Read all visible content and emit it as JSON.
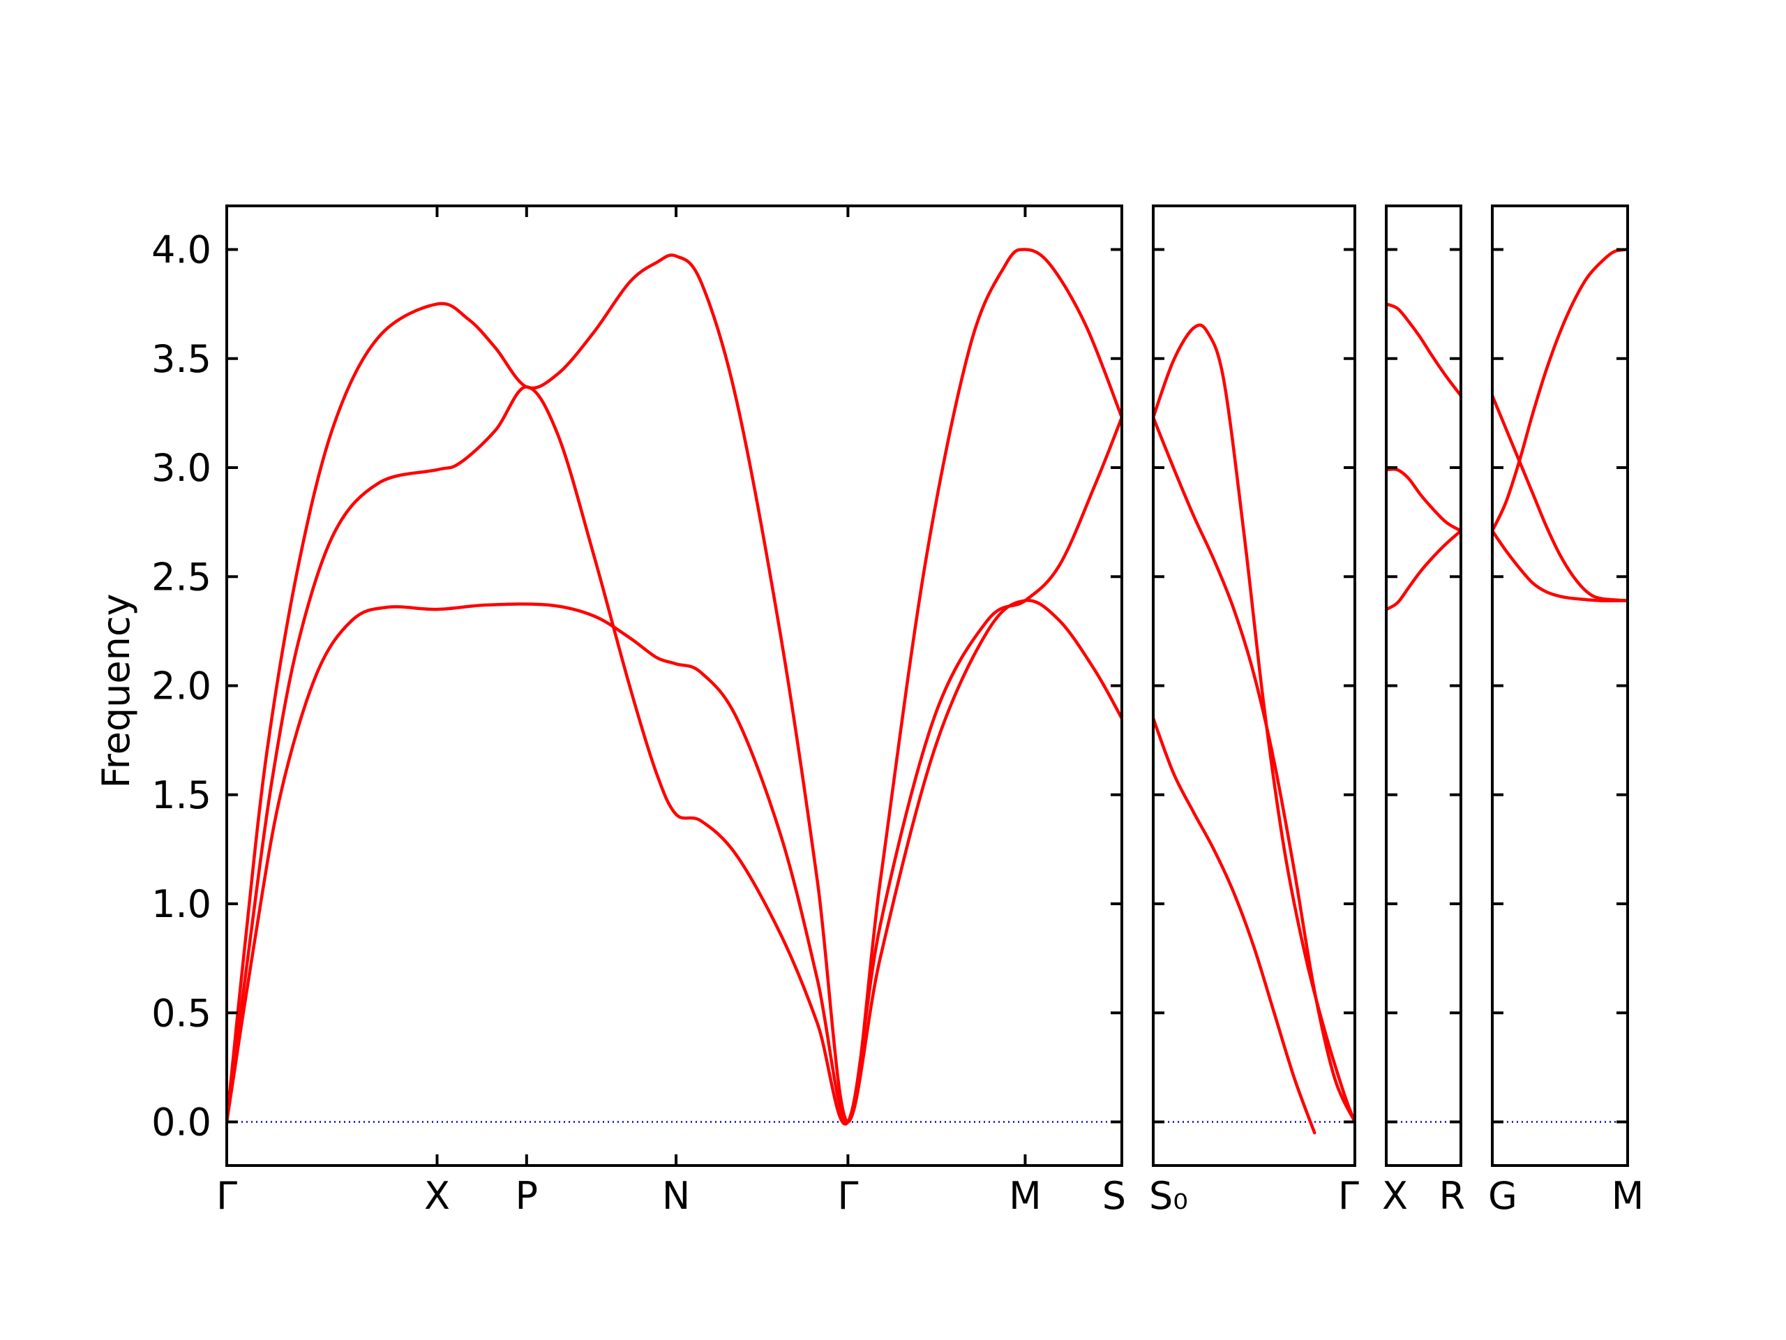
{
  "chart_data": {
    "type": "line",
    "ylabel": "Frequency",
    "ylim": [
      -0.2,
      4.2
    ],
    "yticks": [
      0.0,
      0.5,
      1.0,
      1.5,
      2.0,
      2.5,
      3.0,
      3.5,
      4.0
    ],
    "ytick_labels": [
      "0.0",
      "0.5",
      "1.0",
      "1.5",
      "2.0",
      "2.5",
      "3.0",
      "3.5",
      "4.0"
    ],
    "colors": {
      "bands": "#ff0000",
      "zero_line": "#0000cc",
      "frame": "#000000"
    },
    "grid": false,
    "panels": [
      {
        "id": "panel-1",
        "xlim": [
          0,
          1
        ],
        "kpoints": [
          {
            "x": 0.0,
            "label": "Γ"
          },
          {
            "x": 0.235,
            "label": "X"
          },
          {
            "x": 0.335,
            "label": "P"
          },
          {
            "x": 0.502,
            "label": "N"
          },
          {
            "x": 0.694,
            "label": "Γ"
          },
          {
            "x": 0.892,
            "label": "M"
          },
          {
            "x": 1.0,
            "label": "S"
          }
        ],
        "bands": [
          {
            "name": "",
            "points": [
              [
                0.0,
                0.0
              ],
              [
                0.03,
                0.8
              ],
              [
                0.06,
                1.5
              ],
              [
                0.1,
                2.05
              ],
              [
                0.14,
                2.3
              ],
              [
                0.18,
                2.36
              ],
              [
                0.235,
                2.35
              ],
              [
                0.29,
                2.37
              ],
              [
                0.36,
                2.37
              ],
              [
                0.41,
                2.32
              ],
              [
                0.45,
                2.22
              ],
              [
                0.48,
                2.13
              ],
              [
                0.502,
                2.1
              ],
              [
                0.53,
                2.06
              ],
              [
                0.57,
                1.85
              ],
              [
                0.62,
                1.3
              ],
              [
                0.66,
                0.65
              ],
              [
                0.694,
                0.0
              ],
              [
                0.73,
                0.75
              ],
              [
                0.79,
                1.7
              ],
              [
                0.85,
                2.25
              ],
              [
                0.892,
                2.39
              ],
              [
                0.93,
                2.3
              ],
              [
                0.97,
                2.07
              ],
              [
                1.0,
                1.85
              ]
            ]
          },
          {
            "name": "",
            "points": [
              [
                0.0,
                0.0
              ],
              [
                0.025,
                0.8
              ],
              [
                0.05,
                1.55
              ],
              [
                0.08,
                2.2
              ],
              [
                0.12,
                2.7
              ],
              [
                0.17,
                2.93
              ],
              [
                0.235,
                2.99
              ],
              [
                0.26,
                3.02
              ],
              [
                0.3,
                3.17
              ],
              [
                0.335,
                3.37
              ],
              [
                0.37,
                3.15
              ],
              [
                0.41,
                2.6
              ],
              [
                0.45,
                2.0
              ],
              [
                0.48,
                1.6
              ],
              [
                0.502,
                1.41
              ],
              [
                0.53,
                1.38
              ],
              [
                0.57,
                1.22
              ],
              [
                0.62,
                0.85
              ],
              [
                0.66,
                0.45
              ],
              [
                0.694,
                0.0
              ],
              [
                0.73,
                0.9
              ],
              [
                0.79,
                1.85
              ],
              [
                0.85,
                2.3
              ],
              [
                0.892,
                2.39
              ],
              [
                0.93,
                2.55
              ],
              [
                0.97,
                2.92
              ],
              [
                1.0,
                3.23
              ]
            ]
          },
          {
            "name": "",
            "points": [
              [
                0.0,
                0.0
              ],
              [
                0.02,
                0.8
              ],
              [
                0.045,
                1.7
              ],
              [
                0.08,
                2.55
              ],
              [
                0.12,
                3.2
              ],
              [
                0.17,
                3.6
              ],
              [
                0.235,
                3.75
              ],
              [
                0.27,
                3.68
              ],
              [
                0.3,
                3.55
              ],
              [
                0.335,
                3.37
              ],
              [
                0.37,
                3.43
              ],
              [
                0.41,
                3.62
              ],
              [
                0.45,
                3.85
              ],
              [
                0.48,
                3.94
              ],
              [
                0.502,
                3.97
              ],
              [
                0.53,
                3.85
              ],
              [
                0.57,
                3.3
              ],
              [
                0.62,
                2.2
              ],
              [
                0.66,
                1.1
              ],
              [
                0.694,
                0.0
              ],
              [
                0.73,
                1.1
              ],
              [
                0.78,
                2.55
              ],
              [
                0.83,
                3.55
              ],
              [
                0.87,
                3.93
              ],
              [
                0.892,
                4.0
              ],
              [
                0.92,
                3.93
              ],
              [
                0.96,
                3.65
              ],
              [
                1.0,
                3.23
              ]
            ]
          }
        ]
      },
      {
        "id": "panel-2",
        "xlim": [
          0,
          1
        ],
        "kpoints": [
          {
            "x": 0.0,
            "label": "S₀"
          },
          {
            "x": 1.0,
            "label": "Γ"
          }
        ],
        "bands": [
          {
            "name": "",
            "points": [
              [
                0.0,
                1.85
              ],
              [
                0.1,
                1.6
              ],
              [
                0.2,
                1.42
              ],
              [
                0.3,
                1.25
              ],
              [
                0.4,
                1.05
              ],
              [
                0.5,
                0.8
              ],
              [
                0.6,
                0.5
              ],
              [
                0.7,
                0.2
              ],
              [
                0.8,
                -0.05
              ]
            ]
          },
          {
            "name": "",
            "points": [
              [
                0.0,
                3.23
              ],
              [
                0.1,
                3.0
              ],
              [
                0.2,
                2.78
              ],
              [
                0.3,
                2.58
              ],
              [
                0.4,
                2.35
              ],
              [
                0.5,
                2.05
              ],
              [
                0.6,
                1.65
              ],
              [
                0.7,
                1.15
              ],
              [
                0.8,
                0.6
              ],
              [
                0.9,
                0.2
              ],
              [
                1.0,
                0.0
              ]
            ]
          },
          {
            "name": "",
            "points": [
              [
                0.0,
                3.23
              ],
              [
                0.1,
                3.49
              ],
              [
                0.2,
                3.64
              ],
              [
                0.27,
                3.62
              ],
              [
                0.35,
                3.4
              ],
              [
                0.45,
                2.7
              ],
              [
                0.55,
                1.9
              ],
              [
                0.65,
                1.25
              ],
              [
                0.75,
                0.78
              ],
              [
                0.85,
                0.42
              ],
              [
                0.95,
                0.12
              ],
              [
                1.0,
                0.0
              ]
            ]
          }
        ]
      },
      {
        "id": "panel-3",
        "xlim": [
          0,
          1
        ],
        "kpoints": [
          {
            "x": 0.0,
            "label": "X"
          },
          {
            "x": 1.0,
            "label": "R"
          }
        ],
        "bands": [
          {
            "name": "",
            "points": [
              [
                0.0,
                2.35
              ],
              [
                0.15,
                2.38
              ],
              [
                0.3,
                2.45
              ],
              [
                0.45,
                2.52
              ],
              [
                0.6,
                2.58
              ],
              [
                0.8,
                2.65
              ],
              [
                1.0,
                2.71
              ]
            ]
          },
          {
            "name": "",
            "points": [
              [
                0.0,
                2.99
              ],
              [
                0.15,
                2.99
              ],
              [
                0.3,
                2.95
              ],
              [
                0.45,
                2.88
              ],
              [
                0.6,
                2.82
              ],
              [
                0.8,
                2.75
              ],
              [
                1.0,
                2.71
              ]
            ]
          },
          {
            "name": "",
            "points": [
              [
                0.0,
                3.75
              ],
              [
                0.15,
                3.73
              ],
              [
                0.3,
                3.67
              ],
              [
                0.45,
                3.6
              ],
              [
                0.6,
                3.52
              ],
              [
                0.8,
                3.42
              ],
              [
                1.0,
                3.33
              ]
            ]
          }
        ]
      },
      {
        "id": "panel-4",
        "xlim": [
          0,
          1
        ],
        "kpoints": [
          {
            "x": 0.0,
            "label": "G"
          },
          {
            "x": 1.0,
            "label": "M"
          }
        ],
        "bands": [
          {
            "name": "",
            "points": [
              [
                0.0,
                2.71
              ],
              [
                0.1,
                2.62
              ],
              [
                0.2,
                2.54
              ],
              [
                0.3,
                2.47
              ],
              [
                0.4,
                2.43
              ],
              [
                0.5,
                2.41
              ],
              [
                0.6,
                2.4
              ],
              [
                0.8,
                2.39
              ],
              [
                1.0,
                2.39
              ]
            ]
          },
          {
            "name": "",
            "points": [
              [
                0.0,
                3.33
              ],
              [
                0.1,
                3.18
              ],
              [
                0.2,
                3.03
              ],
              [
                0.3,
                2.88
              ],
              [
                0.4,
                2.73
              ],
              [
                0.5,
                2.6
              ],
              [
                0.6,
                2.5
              ],
              [
                0.7,
                2.43
              ],
              [
                0.8,
                2.4
              ],
              [
                1.0,
                2.39
              ]
            ]
          },
          {
            "name": "",
            "points": [
              [
                0.0,
                2.71
              ],
              [
                0.1,
                2.84
              ],
              [
                0.2,
                3.03
              ],
              [
                0.3,
                3.25
              ],
              [
                0.4,
                3.45
              ],
              [
                0.5,
                3.62
              ],
              [
                0.6,
                3.76
              ],
              [
                0.7,
                3.87
              ],
              [
                0.8,
                3.94
              ],
              [
                0.9,
                3.99
              ],
              [
                1.0,
                4.0
              ]
            ]
          }
        ]
      }
    ]
  }
}
